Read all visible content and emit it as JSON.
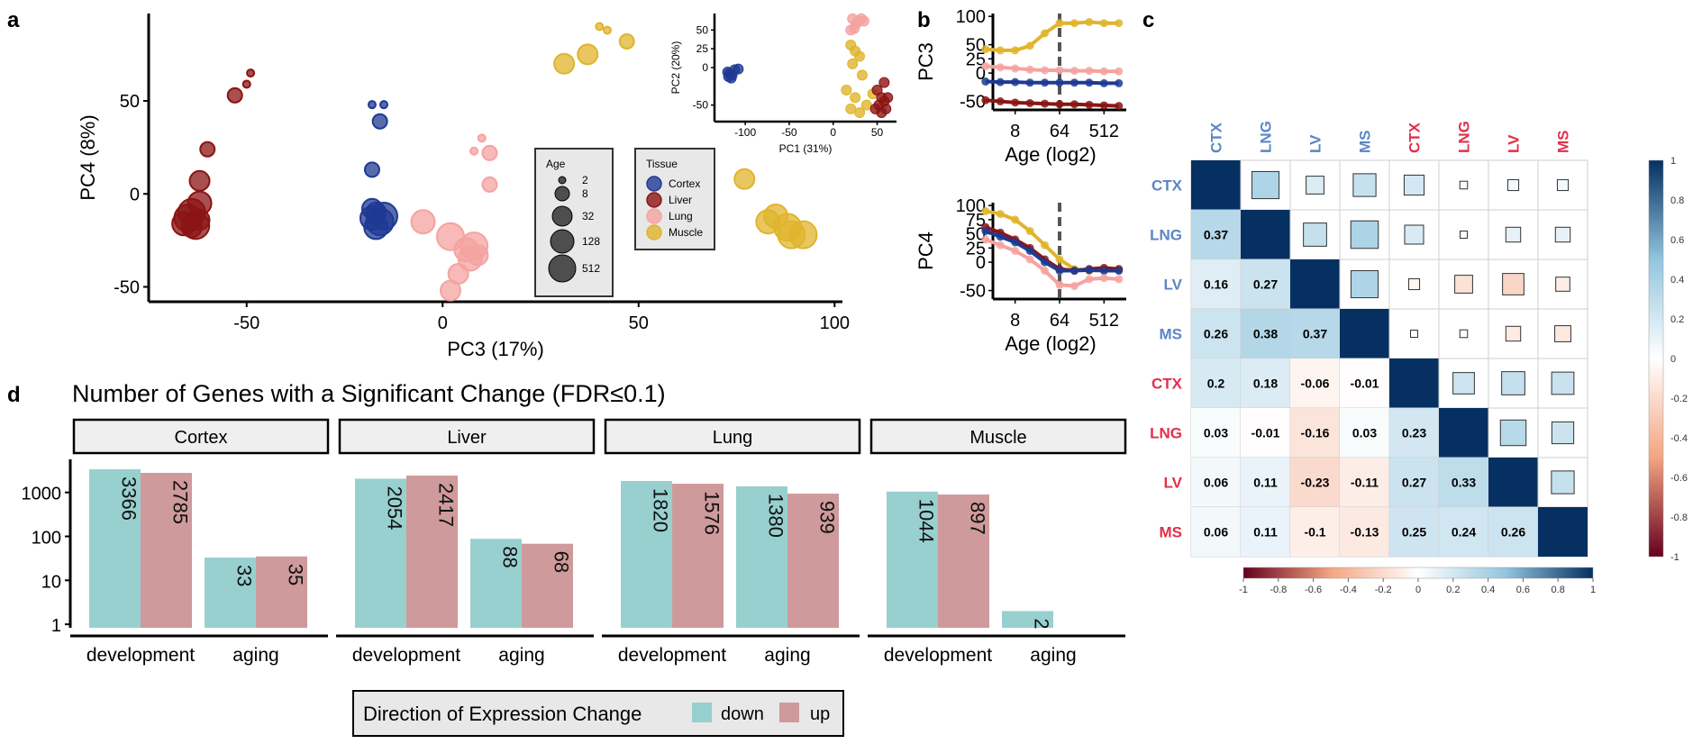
{
  "panels": {
    "a": "a",
    "b": "b",
    "c": "c",
    "d": "d"
  },
  "colors": {
    "Cortex": "#1f3a93",
    "Liver": "#8b1414",
    "Lung": "#f4a3a0",
    "Muscle": "#e0b42c",
    "down": "#97d0cf",
    "up": "#cf9a9b",
    "strip_fill": "#efefef",
    "corr_blue_label": "#5a86c5",
    "corr_red_label": "#e0304a"
  },
  "chart_data": [
    {
      "id": "a_main",
      "type": "scatter",
      "xlabel": "PC3 (17%)",
      "ylabel": "PC4 (8%)",
      "xticks": [
        -50,
        0,
        50,
        100
      ],
      "yticks": [
        -50,
        0,
        50
      ],
      "xlim": [
        -75,
        102
      ],
      "ylim": [
        -58,
        97
      ],
      "legend_age": {
        "title": "Age",
        "labels": [
          "2",
          "8",
          "32",
          "128",
          "512"
        ]
      },
      "legend_tissue": {
        "title": "Tissue",
        "labels": [
          "Cortex",
          "Liver",
          "Lung",
          "Muscle"
        ]
      },
      "series": [
        {
          "name": "Cortex",
          "points": [
            [
              -18,
              48
            ],
            [
              -15,
              48
            ],
            [
              -16,
              39
            ],
            [
              -18,
              13
            ],
            [
              -17,
              -10
            ],
            [
              -18,
              -13
            ],
            [
              -16,
              -15
            ],
            [
              -15,
              -12
            ],
            [
              -17,
              -18
            ],
            [
              -18,
              -8
            ]
          ],
          "sizes": [
            2,
            2,
            8,
            8,
            32,
            128,
            512,
            512,
            128,
            32
          ]
        },
        {
          "name": "Liver",
          "points": [
            [
              -49,
              65
            ],
            [
              -50,
              59
            ],
            [
              -53,
              53
            ],
            [
              -60,
              24
            ],
            [
              -62,
              7
            ],
            [
              -62,
              -5
            ],
            [
              -64,
              -10
            ],
            [
              -65,
              -13
            ],
            [
              -63,
              -17
            ],
            [
              -66,
              -16
            ],
            [
              -62,
              -14
            ],
            [
              -64,
              -18
            ]
          ],
          "sizes": [
            2,
            2,
            8,
            8,
            32,
            128,
            512,
            512,
            512,
            128,
            32,
            32
          ]
        },
        {
          "name": "Lung",
          "points": [
            [
              10,
              30
            ],
            [
              8,
              23
            ],
            [
              12,
              22
            ],
            [
              12,
              5
            ],
            [
              -5,
              -15
            ],
            [
              2,
              -23
            ],
            [
              8,
              -28
            ],
            [
              7,
              -35
            ],
            [
              4,
              -43
            ],
            [
              2,
              -52
            ],
            [
              6,
              -30
            ],
            [
              9,
              -33
            ]
          ],
          "sizes": [
            2,
            2,
            8,
            8,
            128,
            512,
            512,
            128,
            32,
            32,
            128,
            32
          ]
        },
        {
          "name": "Muscle",
          "points": [
            [
              40,
              90
            ],
            [
              42,
              88
            ],
            [
              47,
              82
            ],
            [
              37,
              75
            ],
            [
              31,
              70
            ],
            [
              77,
              8
            ],
            [
              83,
              -15
            ],
            [
              88,
              -18
            ],
            [
              89,
              -22
            ],
            [
              92,
              -22
            ],
            [
              85,
              -12
            ]
          ],
          "sizes": [
            2,
            2,
            8,
            32,
            32,
            32,
            128,
            512,
            512,
            512,
            128
          ]
        }
      ]
    },
    {
      "id": "a_inset",
      "type": "scatter",
      "xlabel": "PC1 (31%)",
      "ylabel": "PC2 (20%)",
      "xticks": [
        -100,
        -50,
        0,
        50
      ],
      "yticks": [
        -50,
        -25,
        0,
        25,
        50
      ],
      "xlim": [
        -135,
        72
      ],
      "ylim": [
        -72,
        72
      ],
      "series": [
        {
          "name": "Cortex",
          "points": [
            [
              -118,
              -8
            ],
            [
              -115,
              -10
            ],
            [
              -120,
              -6
            ],
            [
              -112,
              -3
            ],
            [
              -108,
              -2
            ],
            [
              -116,
              -14
            ],
            [
              -119,
              -12
            ]
          ]
        },
        {
          "name": "Lung",
          "points": [
            [
              22,
              65
            ],
            [
              28,
              62
            ],
            [
              32,
              65
            ],
            [
              35,
              62
            ],
            [
              26,
              58
            ],
            [
              20,
              50
            ],
            [
              24,
              52
            ]
          ]
        },
        {
          "name": "Muscle",
          "points": [
            [
              20,
              30
            ],
            [
              25,
              22
            ],
            [
              30,
              15
            ],
            [
              22,
              5
            ],
            [
              33,
              -10
            ],
            [
              15,
              -30
            ],
            [
              25,
              -40
            ],
            [
              38,
              -50
            ],
            [
              45,
              -35
            ],
            [
              20,
              -55
            ],
            [
              30,
              -60
            ]
          ]
        },
        {
          "name": "Liver",
          "points": [
            [
              50,
              -30
            ],
            [
              55,
              -40
            ],
            [
              58,
              -45
            ],
            [
              52,
              -50
            ],
            [
              60,
              -55
            ],
            [
              55,
              -60
            ],
            [
              48,
              -55
            ],
            [
              62,
              -40
            ],
            [
              58,
              -20
            ]
          ]
        }
      ]
    },
    {
      "id": "b_pc3",
      "type": "line",
      "xlabel": "Age (log2)",
      "ylabel": "PC3",
      "xticks": [
        "8",
        "64",
        "512"
      ],
      "yticks": [
        -50,
        -25,
        0,
        25,
        50,
        75,
        100
      ],
      "xlim": [
        1.5,
        10.5
      ],
      "ylim": [
        -65,
        105
      ],
      "vline_x": 6,
      "series": [
        {
          "name": "Muscle",
          "x": [
            1,
            2,
            3,
            4,
            5,
            6,
            7,
            8,
            9,
            10
          ],
          "values": [
            42,
            40,
            40,
            48,
            70,
            88,
            88,
            90,
            88,
            88
          ]
        },
        {
          "name": "Lung",
          "x": [
            1,
            2,
            3,
            4,
            5,
            6,
            7,
            8,
            9,
            10
          ],
          "values": [
            12,
            10,
            8,
            6,
            5,
            5,
            4,
            4,
            3,
            3
          ]
        },
        {
          "name": "Cortex",
          "x": [
            1,
            2,
            3,
            4,
            5,
            6,
            7,
            8,
            9,
            10
          ],
          "values": [
            -15,
            -16,
            -16,
            -17,
            -17,
            -17,
            -17,
            -17,
            -18,
            -18
          ]
        },
        {
          "name": "Liver",
          "x": [
            1,
            2,
            3,
            4,
            5,
            6,
            7,
            8,
            9,
            10
          ],
          "values": [
            -48,
            -50,
            -52,
            -53,
            -54,
            -55,
            -55,
            -56,
            -57,
            -58
          ]
        }
      ]
    },
    {
      "id": "b_pc4",
      "type": "line",
      "xlabel": "Age (log2)",
      "ylabel": "PC4",
      "xticks": [
        "8",
        "64",
        "512"
      ],
      "yticks": [
        -50,
        -25,
        0,
        25,
        50,
        75,
        100
      ],
      "xlim": [
        1.5,
        10.5
      ],
      "ylim": [
        -65,
        105
      ],
      "vline_x": 6,
      "series": [
        {
          "name": "Muscle",
          "x": [
            1,
            2,
            3,
            4,
            5,
            6,
            7,
            8,
            9,
            10
          ],
          "values": [
            90,
            85,
            75,
            55,
            30,
            5,
            -12,
            -15,
            -14,
            -14
          ]
        },
        {
          "name": "Liver",
          "x": [
            1,
            2,
            3,
            4,
            5,
            6,
            7,
            8,
            9,
            10
          ],
          "values": [
            62,
            52,
            40,
            25,
            5,
            -12,
            -15,
            -12,
            -10,
            -12
          ]
        },
        {
          "name": "Cortex",
          "x": [
            1,
            2,
            3,
            4,
            5,
            6,
            7,
            8,
            9,
            10
          ],
          "values": [
            55,
            45,
            35,
            20,
            0,
            -15,
            -15,
            -14,
            -15,
            -15
          ]
        },
        {
          "name": "Lung",
          "x": [
            1,
            2,
            3,
            4,
            5,
            6,
            7,
            8,
            9,
            10
          ],
          "values": [
            40,
            30,
            20,
            5,
            -15,
            -40,
            -42,
            -30,
            -28,
            -30
          ]
        }
      ]
    },
    {
      "id": "c_corr",
      "type": "heatmap",
      "labels": [
        "CTX",
        "LNG",
        "LV",
        "MS",
        "CTX",
        "LNG",
        "LV",
        "MS"
      ],
      "label_groups": [
        "blue",
        "blue",
        "blue",
        "blue",
        "red",
        "red",
        "red",
        "red"
      ],
      "matrix": [
        [
          1,
          0.37,
          0.16,
          0.26,
          0.2,
          0.03,
          0.06,
          0.06
        ],
        [
          0.37,
          1,
          0.27,
          0.38,
          0.18,
          -0.01,
          0.11,
          0.11
        ],
        [
          0.16,
          0.27,
          1,
          0.37,
          -0.06,
          -0.16,
          -0.23,
          -0.1
        ],
        [
          0.26,
          0.38,
          0.37,
          1,
          -0.01,
          0.03,
          -0.11,
          -0.13
        ],
        [
          0.2,
          0.18,
          -0.06,
          -0.01,
          1,
          0.23,
          0.27,
          0.25
        ],
        [
          0.03,
          -0.01,
          -0.16,
          0.03,
          0.23,
          1,
          0.33,
          0.24
        ],
        [
          0.06,
          0.11,
          -0.23,
          -0.11,
          0.27,
          0.33,
          1,
          0.26
        ],
        [
          0.06,
          0.11,
          -0.1,
          -0.13,
          0.25,
          0.24,
          0.26,
          1
        ]
      ],
      "lower_labels": [
        [
          "",
          "",
          "",
          "",
          "",
          "",
          "",
          ""
        ],
        [
          "0.37",
          "",
          "",
          "",
          "",
          "",
          "",
          ""
        ],
        [
          "0.16",
          "0.27",
          "",
          "",
          "",
          "",
          "",
          ""
        ],
        [
          "0.26",
          "0.38",
          "0.37",
          "",
          "",
          "",
          "",
          ""
        ],
        [
          "0.2",
          "0.18",
          "-0.06",
          "-0.01",
          "",
          "",
          "",
          ""
        ],
        [
          "0.03",
          "-0.01",
          "-0.16",
          "0.03",
          "0.23",
          "",
          "",
          ""
        ],
        [
          "0.06",
          "0.11",
          "-0.23",
          "-0.11",
          "0.27",
          "0.33",
          "",
          ""
        ],
        [
          "0.06",
          "0.11",
          "-0.1",
          "-0.13",
          "0.25",
          "0.24",
          "0.26",
          ""
        ]
      ],
      "colorbar_ticks": [
        "1",
        "0.8",
        "0.6",
        "0.4",
        "0.2",
        "0",
        "-0.2",
        "-0.4",
        "-0.6",
        "-0.8",
        "-1"
      ],
      "colorbar_ticks_h": [
        "-1",
        "-0.8",
        "-0.6",
        "-0.4",
        "-0.2",
        "0",
        "0.2",
        "0.4",
        "0.6",
        "0.8",
        "1"
      ]
    },
    {
      "id": "d_bars",
      "type": "bar",
      "title": "Number of Genes with a Significant Change (FDR≤0.1)",
      "yscale": "log",
      "yticks": [
        "1",
        "10",
        "100",
        "1000"
      ],
      "facets": [
        {
          "name": "Cortex",
          "groups": [
            {
              "label": "development",
              "down": 3366,
              "up": 2785
            },
            {
              "label": "aging",
              "down": 33,
              "up": 35
            }
          ]
        },
        {
          "name": "Liver",
          "groups": [
            {
              "label": "development",
              "down": 2054,
              "up": 2417
            },
            {
              "label": "aging",
              "down": 88,
              "up": 68
            }
          ]
        },
        {
          "name": "Lung",
          "groups": [
            {
              "label": "development",
              "down": 1820,
              "up": 1576
            },
            {
              "label": "aging",
              "down": 1380,
              "up": 939
            }
          ]
        },
        {
          "name": "Muscle",
          "groups": [
            {
              "label": "development",
              "down": 1044,
              "up": 897
            },
            {
              "label": "aging",
              "down": 2,
              "up": null
            }
          ]
        }
      ],
      "legend": {
        "title": "Direction of Expression Change",
        "items": [
          "down",
          "up"
        ]
      }
    }
  ]
}
